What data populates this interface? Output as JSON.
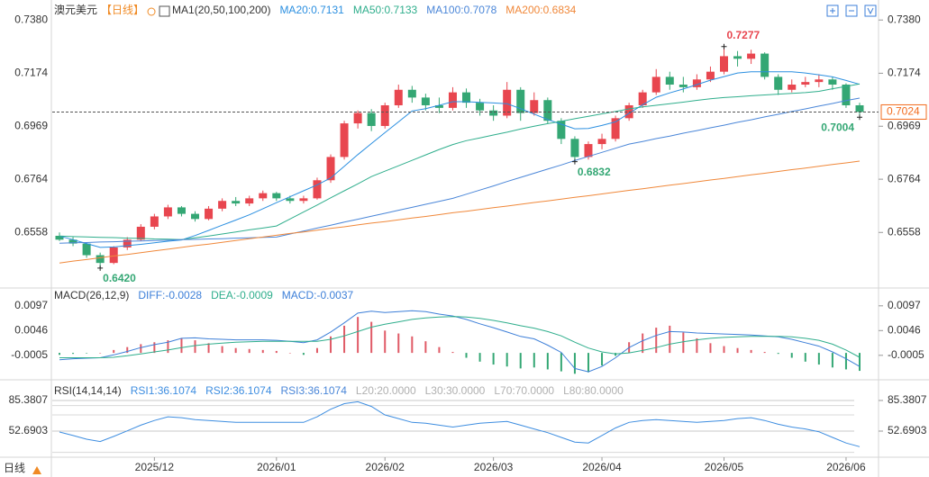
{
  "tab": "日线",
  "chart_data": [
    {
      "type": "candlestick",
      "title": "澳元美元",
      "period": "【日线】",
      "indicator": "MA1(20,50,100,200)",
      "categories": [
        null,
        null,
        null,
        null,
        null,
        null,
        null,
        "2025/12",
        null,
        null,
        null,
        null,
        null,
        null,
        null,
        null,
        "2026/01",
        null,
        null,
        null,
        null,
        null,
        null,
        null,
        "2026/02",
        null,
        null,
        null,
        null,
        null,
        null,
        null,
        "2026/03",
        null,
        null,
        null,
        null,
        null,
        null,
        null,
        "2026/04",
        null,
        null,
        null,
        null,
        null,
        null,
        null,
        null,
        "2026/05",
        null,
        null,
        null,
        null,
        null,
        null,
        null,
        null,
        "2026/06",
        null
      ],
      "open": [
        0.6545,
        0.653,
        0.6515,
        0.647,
        0.644,
        0.65,
        0.653,
        0.658,
        0.662,
        0.6655,
        0.663,
        0.661,
        0.665,
        0.668,
        0.667,
        0.669,
        0.671,
        0.669,
        0.668,
        0.669,
        0.676,
        0.685,
        0.698,
        0.702,
        0.697,
        0.705,
        0.711,
        0.708,
        0.705,
        0.704,
        0.71,
        0.706,
        0.703,
        0.701,
        0.711,
        0.702,
        0.707,
        0.699,
        0.692,
        0.685,
        0.69,
        0.692,
        0.7,
        0.705,
        0.71,
        0.716,
        0.713,
        0.712,
        0.715,
        0.718,
        0.724,
        0.723,
        0.725,
        0.716,
        0.711,
        0.713,
        0.714,
        0.715,
        0.713,
        0.705
      ],
      "high": [
        0.6558,
        0.654,
        0.652,
        0.648,
        0.6505,
        0.654,
        0.659,
        0.663,
        0.6665,
        0.666,
        0.664,
        0.666,
        0.669,
        0.6695,
        0.67,
        0.672,
        0.6715,
        0.67,
        0.67,
        0.677,
        0.686,
        0.699,
        0.703,
        0.7035,
        0.706,
        0.713,
        0.7125,
        0.7095,
        0.708,
        0.712,
        0.7115,
        0.7075,
        0.705,
        0.714,
        0.712,
        0.71,
        0.708,
        0.7,
        0.693,
        0.691,
        0.694,
        0.701,
        0.706,
        0.711,
        0.719,
        0.718,
        0.716,
        0.717,
        0.72,
        0.7277,
        0.726,
        0.7265,
        0.7255,
        0.717,
        0.715,
        0.716,
        0.717,
        0.716,
        0.7135,
        0.706
      ],
      "low": [
        0.6525,
        0.6505,
        0.646,
        0.642,
        0.6435,
        0.649,
        0.6525,
        0.657,
        0.661,
        0.662,
        0.66,
        0.6605,
        0.664,
        0.666,
        0.666,
        0.668,
        0.668,
        0.667,
        0.667,
        0.6685,
        0.675,
        0.684,
        0.696,
        0.695,
        0.696,
        0.704,
        0.706,
        0.703,
        0.702,
        0.703,
        0.704,
        0.701,
        0.699,
        0.7,
        0.699,
        0.701,
        0.698,
        0.69,
        0.6832,
        0.684,
        0.688,
        0.691,
        0.699,
        0.704,
        0.709,
        0.711,
        0.71,
        0.711,
        0.714,
        0.717,
        0.72,
        0.721,
        0.715,
        0.709,
        0.71,
        0.712,
        0.712,
        0.711,
        0.704,
        0.7004
      ],
      "close": [
        0.653,
        0.6515,
        0.647,
        0.644,
        0.65,
        0.653,
        0.658,
        0.662,
        0.6655,
        0.663,
        0.661,
        0.665,
        0.668,
        0.667,
        0.669,
        0.671,
        0.669,
        0.668,
        0.669,
        0.676,
        0.685,
        0.698,
        0.702,
        0.697,
        0.705,
        0.711,
        0.708,
        0.705,
        0.704,
        0.71,
        0.706,
        0.703,
        0.701,
        0.711,
        0.702,
        0.707,
        0.699,
        0.692,
        0.685,
        0.69,
        0.692,
        0.7,
        0.705,
        0.71,
        0.716,
        0.713,
        0.712,
        0.715,
        0.718,
        0.724,
        0.723,
        0.725,
        0.716,
        0.711,
        0.713,
        0.714,
        0.715,
        0.713,
        0.705,
        0.7024
      ],
      "up_color": "#e8464f",
      "down_color": "#34a774",
      "series": [
        {
          "name": "MA20:0.7131",
          "color": "#2b8fe0",
          "values": [
            0.6544,
            0.653,
            0.6515,
            0.65,
            0.6502,
            0.6507,
            0.6512,
            0.6518,
            0.6524,
            0.6529,
            0.6546,
            0.6566,
            0.6586,
            0.6606,
            0.6626,
            0.665,
            0.6673,
            0.6696,
            0.6719,
            0.6742,
            0.6769,
            0.6814,
            0.6859,
            0.6902,
            0.6944,
            0.6986,
            0.7028,
            0.7037,
            0.705,
            0.7064,
            0.7064,
            0.7061,
            0.7059,
            0.7056,
            0.7037,
            0.7016,
            0.6995,
            0.6977,
            0.6959,
            0.696,
            0.6972,
            0.6986,
            0.7019,
            0.7052,
            0.7081,
            0.7098,
            0.7113,
            0.713,
            0.7147,
            0.7161,
            0.7175,
            0.718,
            0.718,
            0.718,
            0.718,
            0.7175,
            0.7168,
            0.716,
            0.7146,
            0.7131
          ]
        },
        {
          "name": "MA50:0.7133",
          "color": "#2fae8c",
          "values": [
            0.6544,
            0.6542,
            0.6541,
            0.6539,
            0.6538,
            0.6536,
            0.6535,
            0.6533,
            0.6532,
            0.653,
            0.6537,
            0.6544,
            0.6552,
            0.656,
            0.6568,
            0.6575,
            0.6583,
            0.661,
            0.6637,
            0.6664,
            0.6692,
            0.6719,
            0.6746,
            0.6774,
            0.6795,
            0.6816,
            0.6837,
            0.6858,
            0.6879,
            0.6898,
            0.6913,
            0.6924,
            0.6935,
            0.6946,
            0.6958,
            0.6969,
            0.6979,
            0.6988,
            0.6998,
            0.7007,
            0.7017,
            0.7026,
            0.7036,
            0.7044,
            0.705,
            0.7056,
            0.7062,
            0.7069,
            0.7075,
            0.708,
            0.7083,
            0.7087,
            0.709,
            0.7093,
            0.7096,
            0.7099,
            0.7104,
            0.7114,
            0.7123,
            0.7133
          ]
        },
        {
          "name": "MA100:0.7078",
          "color": "#4a86d8",
          "values": [
            0.6516,
            0.6518,
            0.6519,
            0.6521,
            0.6522,
            0.6524,
            0.6525,
            0.6527,
            0.6528,
            0.653,
            0.6531,
            0.6533,
            0.6534,
            0.6536,
            0.6537,
            0.6539,
            0.654,
            0.6552,
            0.6563,
            0.6575,
            0.6586,
            0.6598,
            0.6609,
            0.6621,
            0.6632,
            0.6644,
            0.6655,
            0.6667,
            0.6678,
            0.669,
            0.6706,
            0.6722,
            0.6738,
            0.6755,
            0.6771,
            0.6787,
            0.6803,
            0.6819,
            0.6836,
            0.6852,
            0.6868,
            0.6884,
            0.69,
            0.691,
            0.6921,
            0.6931,
            0.6942,
            0.6952,
            0.6963,
            0.6973,
            0.6984,
            0.6994,
            0.7005,
            0.7015,
            0.7026,
            0.7036,
            0.7047,
            0.7057,
            0.7068,
            0.7078
          ]
        },
        {
          "name": "MA200:0.6834",
          "color": "#f0883a",
          "values": [
            0.644,
            0.6447,
            0.6453,
            0.646,
            0.6467,
            0.6473,
            0.648,
            0.6487,
            0.6493,
            0.65,
            0.6507,
            0.6513,
            0.652,
            0.6527,
            0.6534,
            0.654,
            0.6547,
            0.6554,
            0.656,
            0.6567,
            0.6574,
            0.658,
            0.6587,
            0.6594,
            0.66,
            0.6607,
            0.6614,
            0.662,
            0.6627,
            0.6634,
            0.664,
            0.6647,
            0.6654,
            0.666,
            0.6667,
            0.6674,
            0.668,
            0.6687,
            0.6694,
            0.67,
            0.6707,
            0.6714,
            0.6721,
            0.6727,
            0.6734,
            0.6741,
            0.6747,
            0.6754,
            0.6761,
            0.6767,
            0.6774,
            0.6781,
            0.6787,
            0.6794,
            0.6801,
            0.6807,
            0.6814,
            0.6821,
            0.6827,
            0.6834
          ]
        }
      ],
      "annotations": [
        {
          "text": "0.7277",
          "color": "#e8464f"
        },
        {
          "text": "0.6420",
          "color": "#34a774"
        },
        {
          "text": "0.6832",
          "color": "#34a774"
        },
        {
          "text": "0.7004",
          "color": "#34a774"
        }
      ],
      "last_price": 0.7024,
      "last_price_color": "#f26b1d",
      "ylim": [
        0.635,
        0.744
      ],
      "yticks": [
        {
          "value": 0.738,
          "label": "0.7380"
        },
        0.7174,
        0.6969,
        0.6764,
        0.6558
      ],
      "grid": false
    },
    {
      "type": "macd",
      "title": "MACD(26,12,9)",
      "series": [
        {
          "name": "DIFF:-0.0028",
          "color": "#3d7fd8",
          "values": [
            -0.0014,
            -0.0012,
            -0.0011,
            -0.001,
            -0.0004,
            0.0003,
            0.0011,
            0.0017,
            0.0022,
            0.003,
            0.0031,
            0.0029,
            0.0028,
            0.0027,
            0.0027,
            0.0027,
            0.0026,
            0.0024,
            0.0021,
            0.0027,
            0.0043,
            0.0062,
            0.0082,
            0.0086,
            0.0083,
            0.0085,
            0.0087,
            0.0085,
            0.008,
            0.0076,
            0.0069,
            0.006,
            0.0052,
            0.0043,
            0.0034,
            0.0029,
            0.0016,
            0.0001,
            -0.0032,
            -0.0039,
            -0.0028,
            -0.001,
            0.0011,
            0.0025,
            0.0036,
            0.0044,
            0.0043,
            0.0041,
            0.004,
            0.0039,
            0.0038,
            0.0037,
            0.0035,
            0.0033,
            0.0028,
            0.0021,
            0.0014,
            0.0002,
            -0.0012,
            -0.0028
          ]
        },
        {
          "name": "DEA:-0.0009",
          "color": "#2fae8c",
          "values": [
            -0.001,
            -0.001,
            -0.001,
            -0.001,
            -0.0009,
            -0.0006,
            -0.0002,
            0.0002,
            0.0006,
            0.0011,
            0.0015,
            0.0018,
            0.002,
            0.0022,
            0.0023,
            0.0024,
            0.0024,
            0.0024,
            0.0024,
            0.0024,
            0.0028,
            0.0035,
            0.0044,
            0.0053,
            0.0059,
            0.0064,
            0.0069,
            0.0072,
            0.0074,
            0.0075,
            0.0074,
            0.0071,
            0.0067,
            0.0062,
            0.0056,
            0.0051,
            0.0044,
            0.0035,
            0.0022,
            0.001,
            0.0002,
            -0.0002,
            0.0,
            0.0005,
            0.0011,
            0.0018,
            0.0023,
            0.0027,
            0.003,
            0.0032,
            0.0033,
            0.0034,
            0.0034,
            0.0034,
            0.0033,
            0.003,
            0.0026,
            0.0018,
            0.0006,
            -0.0009
          ]
        }
      ],
      "histogram": {
        "name": "MACD:-0.0037",
        "color": "#e05a66",
        "down_color": "#34a774",
        "values": [
          -0.0004,
          -0.0002,
          -0.0001,
          0.0,
          0.0006,
          0.0012,
          0.0018,
          0.0022,
          0.0026,
          0.003,
          0.0026,
          0.002,
          0.0014,
          0.001,
          0.0008,
          0.0006,
          0.0004,
          0.0,
          -0.0004,
          0.001,
          0.0034,
          0.0056,
          0.0074,
          0.0064,
          0.0046,
          0.004,
          0.0034,
          0.0024,
          0.0012,
          0.0002,
          -0.001,
          -0.0018,
          -0.0024,
          -0.0028,
          -0.0032,
          -0.003,
          -0.0034,
          -0.0038,
          -0.0043,
          -0.004,
          -0.0026,
          -0.0006,
          0.0022,
          0.004,
          0.0052,
          0.0056,
          0.0042,
          0.003,
          0.002,
          0.0014,
          0.001,
          0.0006,
          0.0002,
          -0.0002,
          -0.001,
          -0.0018,
          -0.0024,
          -0.003,
          -0.0034,
          -0.0037
        ]
      },
      "ylim": [
        -0.0048,
        0.013
      ],
      "yticks": [
        0.0097,
        0.0046,
        -0.0005
      ]
    },
    {
      "type": "line",
      "title": "RSI(14,14,14)",
      "series": [
        {
          "name": "RSI1:36.1074",
          "color": "#3d8de0",
          "values": [
            51.7,
            48,
            44,
            41.5,
            47,
            53,
            59,
            64,
            68,
            67,
            65,
            64,
            63,
            62,
            62,
            62,
            62,
            62,
            62,
            68,
            76,
            82,
            84,
            79,
            70,
            66,
            62,
            61,
            59,
            57,
            59,
            61,
            62,
            63,
            59,
            55,
            51,
            46,
            41,
            40,
            48,
            56,
            62,
            64,
            65,
            64,
            63,
            62,
            63,
            64,
            66,
            67,
            64,
            60,
            57,
            55,
            52,
            46,
            40,
            36.1
          ]
        }
      ],
      "legend_extra": [
        {
          "name": "RSI2:36.1074",
          "color": "#3d8de0"
        },
        {
          "name": "RSI3:36.1074",
          "color": "#4a86d8"
        }
      ],
      "levels": [
        {
          "value": 20,
          "label": "L20:20.0000"
        },
        {
          "value": 30,
          "label": "L30:30.0000"
        },
        {
          "value": 70,
          "label": "L70:70.0000"
        },
        {
          "value": 80,
          "label": "L80:80.0000"
        }
      ],
      "level_color": "#b0b0b0",
      "ylim": [
        27.7,
        103.6
      ],
      "yticks": [
        85.3807,
        52.6903
      ],
      "grid": true
    }
  ]
}
